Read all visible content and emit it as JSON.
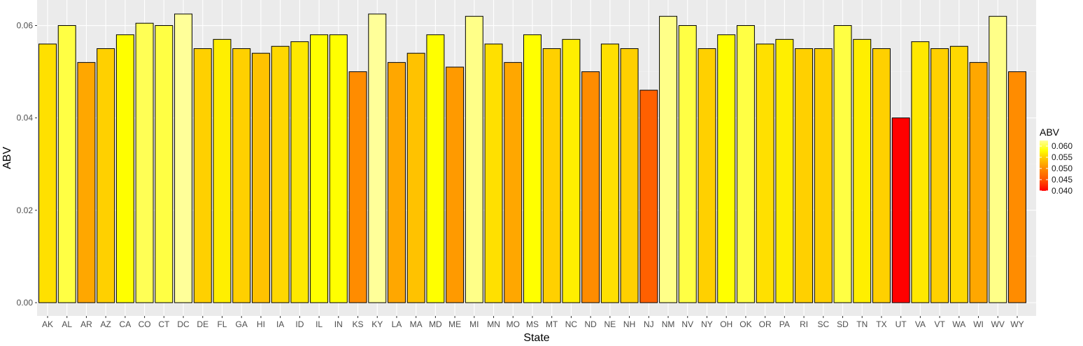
{
  "chart_data": {
    "type": "bar",
    "title": "",
    "xlabel": "State",
    "ylabel": "ABV",
    "ylim": [
      0,
      0.0625
    ],
    "y_ticks": [
      "0.00",
      "0.02",
      "0.04",
      "0.06"
    ],
    "y_tick_values": [
      0,
      0.02,
      0.04,
      0.06
    ],
    "grid": true,
    "categories": [
      "AK",
      "AL",
      "AR",
      "AZ",
      "CA",
      "CO",
      "CT",
      "DC",
      "DE",
      "FL",
      "GA",
      "HI",
      "IA",
      "ID",
      "IL",
      "IN",
      "KS",
      "KY",
      "LA",
      "MA",
      "MD",
      "ME",
      "MI",
      "MN",
      "MO",
      "MS",
      "MT",
      "NC",
      "ND",
      "NE",
      "NH",
      "NJ",
      "NM",
      "NV",
      "NY",
      "OH",
      "OK",
      "OR",
      "PA",
      "RI",
      "SC",
      "SD",
      "TN",
      "TX",
      "UT",
      "VA",
      "VT",
      "WA",
      "WI",
      "WV",
      "WY"
    ],
    "values": [
      0.056,
      0.06,
      0.052,
      0.055,
      0.058,
      0.0605,
      0.06,
      0.0625,
      0.055,
      0.057,
      0.055,
      0.054,
      0.0555,
      0.0565,
      0.058,
      0.058,
      0.05,
      0.0625,
      0.052,
      0.054,
      0.058,
      0.051,
      0.062,
      0.056,
      0.052,
      0.058,
      0.055,
      0.057,
      0.05,
      0.056,
      0.055,
      0.046,
      0.062,
      0.06,
      0.055,
      0.058,
      0.06,
      0.056,
      0.057,
      0.055,
      0.055,
      0.06,
      0.057,
      0.055,
      0.04,
      0.0565,
      0.055,
      0.0555,
      0.052,
      0.062,
      0.05
    ],
    "legend": {
      "title": "ABV",
      "position": "right",
      "labels": [
        "0.060",
        "0.055",
        "0.050",
        "0.045",
        "0.040"
      ],
      "label_values": [
        0.06,
        0.055,
        0.05,
        0.045,
        0.04
      ]
    },
    "color_scale": {
      "min": 0.04,
      "max": 0.0625,
      "stops": [
        {
          "value": 0.04,
          "color": "#ff0000"
        },
        {
          "value": 0.045,
          "color": "#ff5500"
        },
        {
          "value": 0.05,
          "color": "#ff8c00"
        },
        {
          "value": 0.055,
          "color": "#ffd000"
        },
        {
          "value": 0.058,
          "color": "#ffff00"
        },
        {
          "value": 0.0625,
          "color": "#ffff99"
        }
      ]
    },
    "colors": {
      "panel_background": "#ebebeb",
      "grid_major": "#ffffff",
      "grid_minor": "#f2f2f2",
      "bar_outline": "#000000"
    }
  }
}
